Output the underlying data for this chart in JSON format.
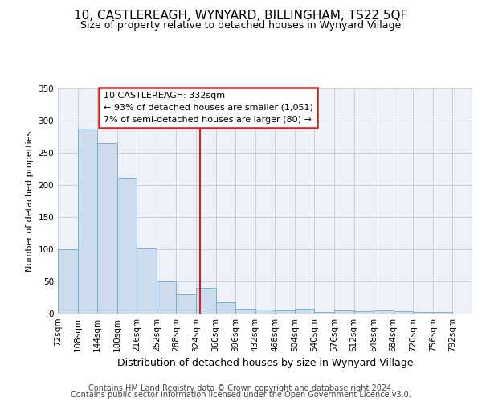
{
  "title": "10, CASTLEREAGH, WYNYARD, BILLINGHAM, TS22 5QF",
  "subtitle": "Size of property relative to detached houses in Wynyard Village",
  "xlabel": "Distribution of detached houses by size in Wynyard Village",
  "ylabel": "Number of detached properties",
  "footnote1": "Contains HM Land Registry data © Crown copyright and database right 2024.",
  "footnote2": "Contains public sector information licensed under the Open Government Licence v3.0.",
  "annotation_line1": "10 CASTLEREAGH: 332sqm",
  "annotation_line2": "← 93% of detached houses are smaller (1,051)",
  "annotation_line3": "7% of semi-detached houses are larger (80) →",
  "vline_x": 332,
  "bar_edges": [
    72,
    108,
    144,
    180,
    216,
    252,
    288,
    324,
    360,
    396,
    432,
    468,
    504,
    540,
    576,
    612,
    648,
    684,
    720,
    756,
    792
  ],
  "bar_heights": [
    100,
    288,
    265,
    210,
    101,
    50,
    30,
    40,
    18,
    8,
    6,
    5,
    7,
    3,
    5,
    4,
    5,
    4,
    2,
    3
  ],
  "bar_color": "#ccdcec",
  "bar_edge_color": "#6aaad4",
  "vline_color": "#cc2222",
  "annotation_box_color": "#cc2222",
  "background_color": "#eef2f8",
  "grid_color": "#c8d0dc",
  "ylim": [
    0,
    350
  ],
  "yticks": [
    0,
    50,
    100,
    150,
    200,
    250,
    300,
    350
  ],
  "title_fontsize": 11,
  "subtitle_fontsize": 9,
  "xlabel_fontsize": 9,
  "ylabel_fontsize": 8,
  "tick_fontsize": 7.5,
  "footnote_fontsize": 7
}
